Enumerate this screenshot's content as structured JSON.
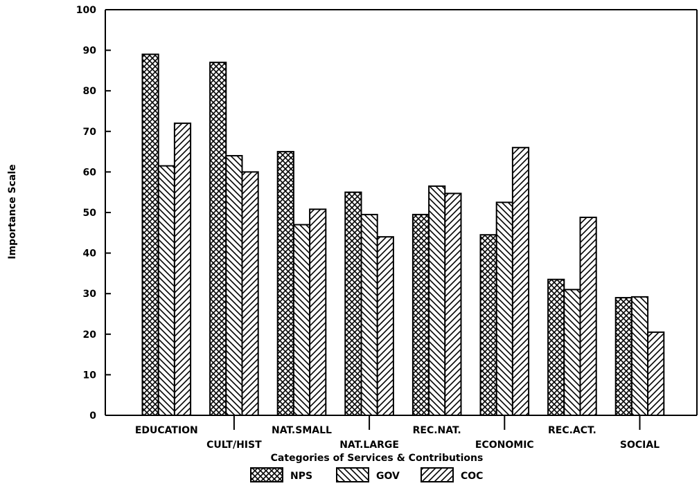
{
  "chart_data": {
    "type": "bar",
    "title": "",
    "xlabel": "Categories of Services & Contributions",
    "ylabel": "Importance Scale",
    "ylim": [
      0,
      100
    ],
    "yticks": [
      0,
      10,
      20,
      30,
      40,
      50,
      60,
      70,
      80,
      90,
      100
    ],
    "grid": false,
    "legend_position": "bottom",
    "categories": [
      "EDUCATION",
      "CULT/HIST",
      "NAT.SMALL",
      "NAT.LARGE",
      "REC.NAT.",
      "ECONOMIC",
      "REC.ACT.",
      "SOCIAL"
    ],
    "series": [
      {
        "name": "NPS",
        "pattern": "crosshatch",
        "values": [
          89,
          87,
          65,
          55,
          49.5,
          44.5,
          33.5,
          29
        ]
      },
      {
        "name": "GOV",
        "pattern": "backslash",
        "values": [
          61.5,
          64,
          47,
          49.5,
          56.5,
          52.5,
          31,
          29.2
        ]
      },
      {
        "name": "COC",
        "pattern": "forwardslash",
        "values": [
          72,
          60,
          50.8,
          44,
          54.7,
          66,
          48.8,
          20.5
        ]
      }
    ],
    "colors": {
      "ink": "#000000",
      "background": "#ffffff"
    }
  }
}
